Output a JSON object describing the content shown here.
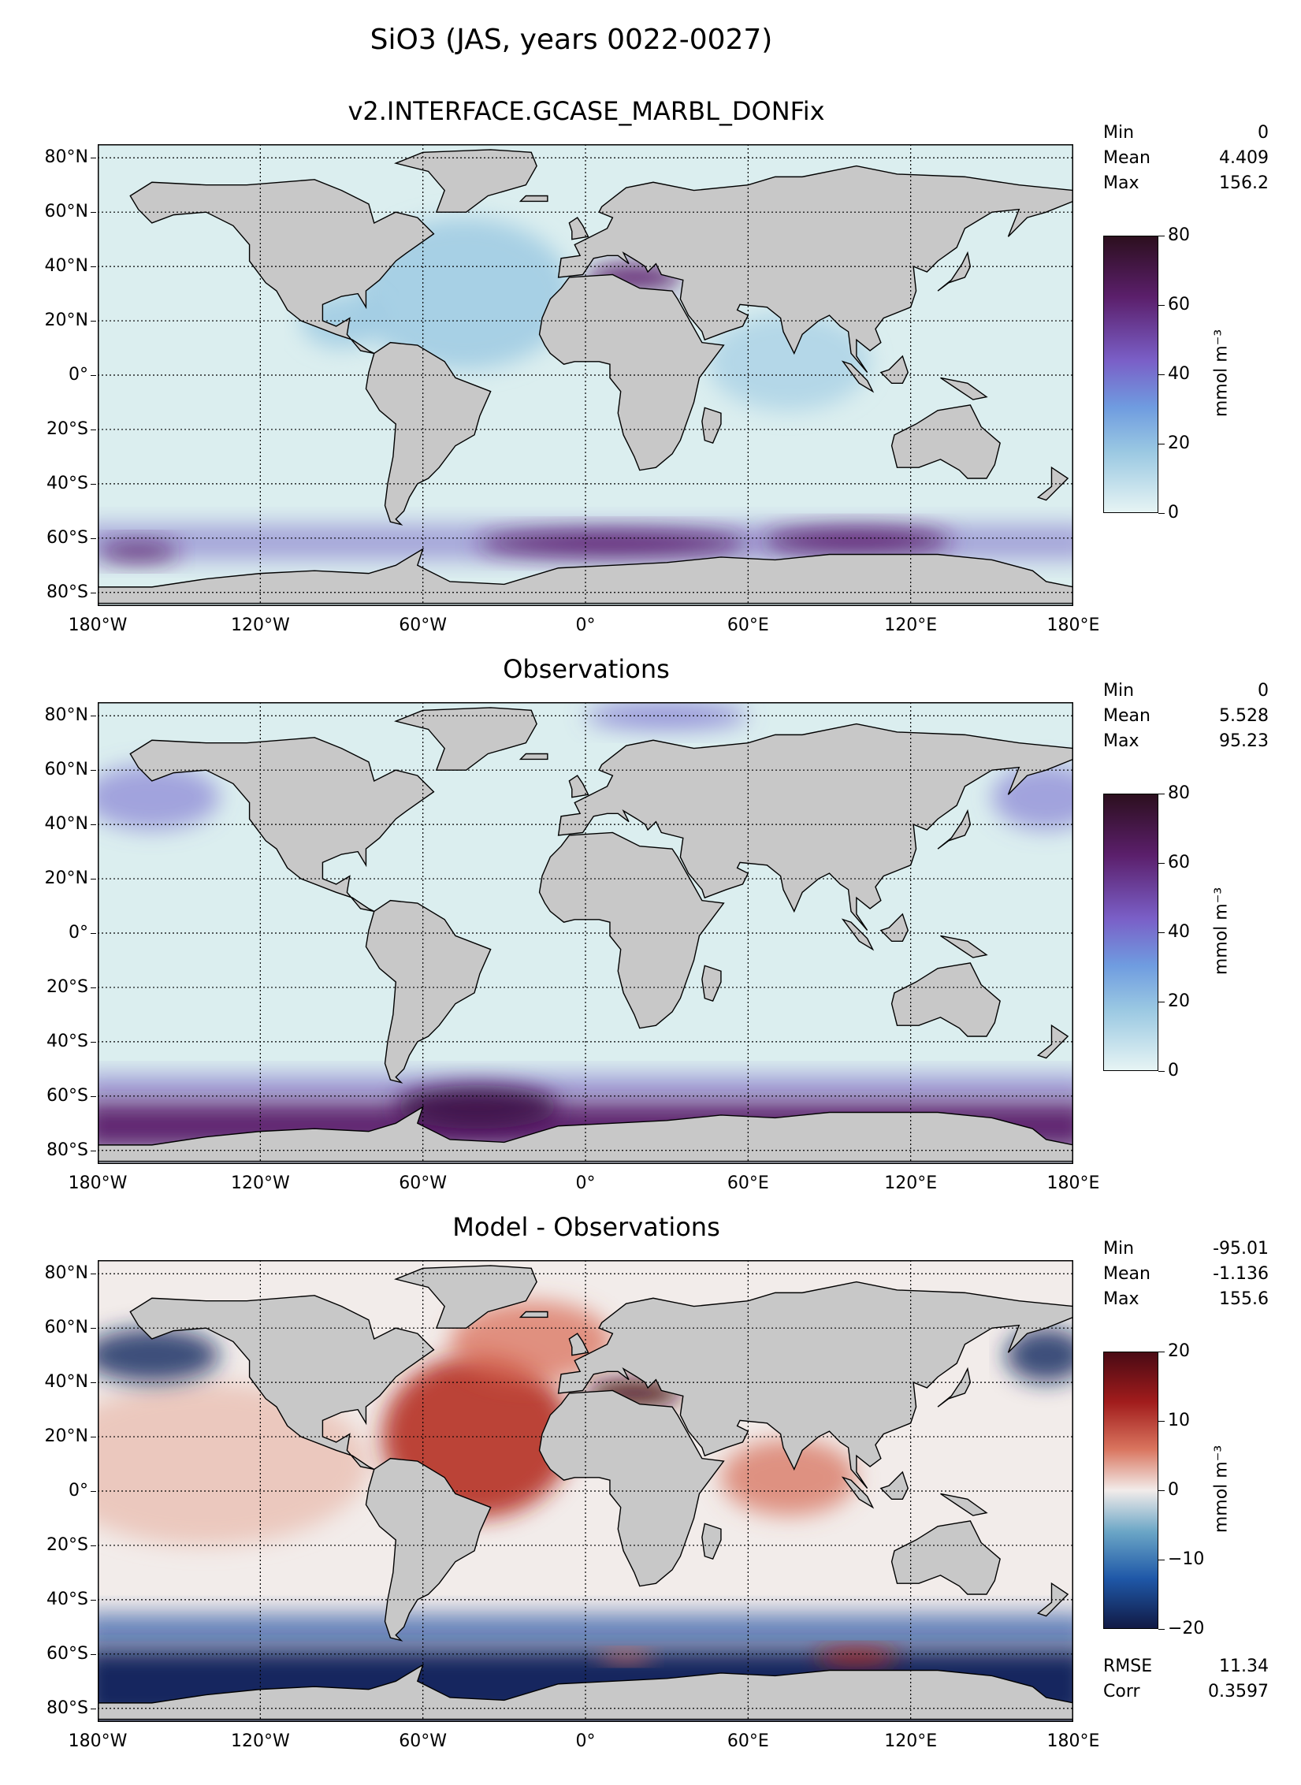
{
  "suptitle": "SiO3 (JAS, years 0022-0027)",
  "colors": {
    "ocean_low": "#dbeeef",
    "ocean_mid": "#9ac8e2",
    "land": "#c8c8c8",
    "purple_high": "#5b1f6b",
    "blue_high": "#7b6fd0",
    "diff_pos": "#b22418",
    "diff_neg": "#12255e",
    "diff_zero": "#f2ecea"
  },
  "chart_data": [
    {
      "type": "heatmap",
      "title": "v2.INTERFACE.GCASE_MARBL_DONFix",
      "x_ticks": [
        "180°W",
        "120°W",
        "60°W",
        "0°",
        "60°E",
        "120°E",
        "180°E"
      ],
      "y_ticks": [
        "80°N",
        "60°N",
        "40°N",
        "20°N",
        "0°",
        "20°S",
        "40°S",
        "60°S",
        "80°S"
      ],
      "colorbar": {
        "ticks": [
          "80",
          "60",
          "40",
          "20",
          "0"
        ],
        "label": "mmol m⁻³",
        "range": [
          0,
          80
        ]
      },
      "stats": [
        {
          "label": "Min",
          "value": "0"
        },
        {
          "label": "Mean",
          "value": "4.409"
        },
        {
          "label": "Max",
          "value": "156.2"
        }
      ]
    },
    {
      "type": "heatmap",
      "title": "Observations",
      "x_ticks": [
        "180°W",
        "120°W",
        "60°W",
        "0°",
        "60°E",
        "120°E",
        "180°E"
      ],
      "y_ticks": [
        "80°N",
        "60°N",
        "40°N",
        "20°N",
        "0°",
        "20°S",
        "40°S",
        "60°S",
        "80°S"
      ],
      "colorbar": {
        "ticks": [
          "80",
          "60",
          "40",
          "20",
          "0"
        ],
        "label": "mmol m⁻³",
        "range": [
          0,
          80
        ]
      },
      "stats": [
        {
          "label": "Min",
          "value": "0"
        },
        {
          "label": "Mean",
          "value": "5.528"
        },
        {
          "label": "Max",
          "value": "95.23"
        }
      ]
    },
    {
      "type": "heatmap",
      "title": "Model - Observations",
      "x_ticks": [
        "180°W",
        "120°W",
        "60°W",
        "0°",
        "60°E",
        "120°E",
        "180°E"
      ],
      "y_ticks": [
        "80°N",
        "60°N",
        "40°N",
        "20°N",
        "0°",
        "20°S",
        "40°S",
        "60°S",
        "80°S"
      ],
      "colorbar": {
        "ticks": [
          "20",
          "10",
          "0",
          "−10",
          "−20"
        ],
        "label": "mmol m⁻³",
        "range": [
          -20,
          20
        ]
      },
      "stats": [
        {
          "label": "Min",
          "value": "-95.01"
        },
        {
          "label": "Mean",
          "value": "-1.136"
        },
        {
          "label": "Max",
          "value": "155.6"
        }
      ],
      "extra_stats": [
        {
          "label": "RMSE",
          "value": "11.34"
        },
        {
          "label": "Corr",
          "value": "0.3597"
        }
      ]
    }
  ]
}
